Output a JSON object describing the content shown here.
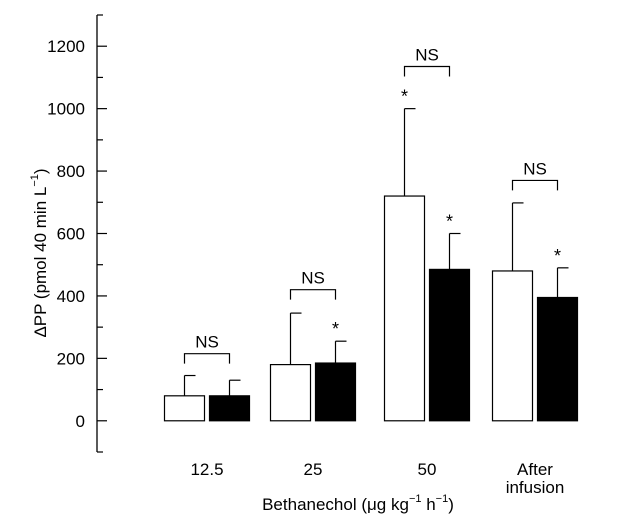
{
  "chart_data": {
    "type": "bar",
    "categories": [
      "12.5",
      [
        "25"
      ],
      "50",
      [
        "After",
        "infusion"
      ]
    ],
    "category_labels": [
      [
        "12.5"
      ],
      [
        "25"
      ],
      [
        "50"
      ],
      [
        "After",
        "infusion"
      ]
    ],
    "series": [
      {
        "fill": "#ffffff",
        "values": [
          80,
          180,
          720,
          480
        ],
        "errors": [
          145,
          345,
          1000,
          698
        ]
      },
      {
        "fill": "#000000",
        "values": [
          80,
          185,
          485,
          395
        ],
        "errors": [
          130,
          255,
          600,
          490
        ]
      }
    ],
    "significance_markers": [
      {
        "category": 1,
        "series": 1,
        "label": "*"
      },
      {
        "category": 2,
        "series": 0,
        "label": "*"
      },
      {
        "category": 2,
        "series": 1,
        "label": "*"
      },
      {
        "category": 3,
        "series": 1,
        "label": "*"
      }
    ],
    "comparison_brackets": [
      {
        "category": 0,
        "label": "NS",
        "y": 215
      },
      {
        "category": 1,
        "label": "NS",
        "y": 420
      },
      {
        "category": 2,
        "label": "NS",
        "y": 1135
      },
      {
        "category": 3,
        "label": "NS",
        "y": 770
      }
    ],
    "ylabel": "ΔPP (pmol 40 min L",
    "ylabel_sup": "−1",
    "ylabel_end": ")",
    "xlabel": "Bethanechol (μg kg",
    "xlabel_sup1": "−1",
    "xlabel_mid": " h",
    "xlabel_sup2": "−1",
    "xlabel_end": ")",
    "ylim": [
      -100,
      1300
    ],
    "y_ticks": [
      0,
      200,
      400,
      600,
      800,
      1000,
      1200
    ],
    "y_tick_labels": [
      "0",
      "200",
      "400",
      "600",
      "800",
      "1000",
      "1200"
    ],
    "grid": false
  }
}
